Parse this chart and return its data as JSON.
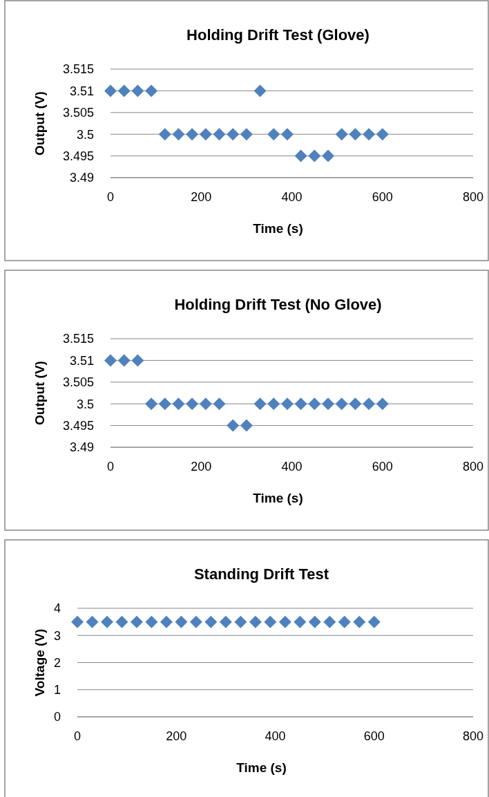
{
  "chart_data": [
    {
      "type": "scatter",
      "title": "Holding Drift Test (Glove)",
      "xlabel": "Time (s)",
      "ylabel": "Output (V)",
      "x": [
        0,
        30,
        60,
        90,
        120,
        150,
        180,
        210,
        240,
        270,
        300,
        330,
        360,
        390,
        420,
        450,
        480,
        510,
        540,
        570,
        600
      ],
      "series": [
        {
          "color": "#4f81bd",
          "values": [
            3.51,
            3.51,
            3.51,
            3.51,
            3.5,
            3.5,
            3.5,
            3.5,
            3.5,
            3.5,
            3.5,
            3.51,
            3.5,
            3.5,
            3.495,
            3.495,
            3.495,
            3.5,
            3.5,
            3.5,
            3.5
          ]
        }
      ],
      "xlim": [
        0,
        800
      ],
      "xticks": [
        0,
        200,
        400,
        600,
        800
      ],
      "ylim": [
        3.49,
        3.515
      ],
      "yticks": [
        3.49,
        3.495,
        3.5,
        3.505,
        3.51,
        3.515
      ],
      "grid": "y",
      "marker": "diamond"
    },
    {
      "type": "scatter",
      "title": "Holding Drift Test (No Glove)",
      "xlabel": "Time (s)",
      "ylabel": "Output (V)",
      "x": [
        0,
        30,
        60,
        90,
        120,
        150,
        180,
        210,
        240,
        270,
        300,
        330,
        360,
        390,
        420,
        450,
        480,
        510,
        540,
        570,
        600
      ],
      "series": [
        {
          "color": "#4f81bd",
          "values": [
            3.51,
            3.51,
            3.51,
            3.5,
            3.5,
            3.5,
            3.5,
            3.5,
            3.5,
            3.495,
            3.495,
            3.5,
            3.5,
            3.5,
            3.5,
            3.5,
            3.5,
            3.5,
            3.5,
            3.5,
            3.5
          ]
        }
      ],
      "xlim": [
        0,
        800
      ],
      "xticks": [
        0,
        200,
        400,
        600,
        800
      ],
      "ylim": [
        3.49,
        3.515
      ],
      "yticks": [
        3.49,
        3.495,
        3.5,
        3.505,
        3.51,
        3.515
      ],
      "grid": "y",
      "marker": "diamond"
    },
    {
      "type": "scatter",
      "title": "Standing Drift Test",
      "xlabel": "Time (s)",
      "ylabel": "Voltage (V)",
      "x": [
        0,
        30,
        60,
        90,
        120,
        150,
        180,
        210,
        240,
        270,
        300,
        330,
        360,
        390,
        420,
        450,
        480,
        510,
        540,
        570,
        600
      ],
      "series": [
        {
          "color": "#4f81bd",
          "values": [
            3.5,
            3.5,
            3.5,
            3.5,
            3.5,
            3.5,
            3.5,
            3.5,
            3.5,
            3.5,
            3.5,
            3.5,
            3.5,
            3.5,
            3.5,
            3.5,
            3.5,
            3.5,
            3.5,
            3.5,
            3.5
          ]
        }
      ],
      "xlim": [
        0,
        800
      ],
      "xticks": [
        0,
        200,
        400,
        600,
        800
      ],
      "ylim": [
        0,
        4
      ],
      "yticks": [
        0,
        1,
        2,
        3,
        4
      ],
      "grid": "y",
      "marker": "diamond"
    }
  ]
}
